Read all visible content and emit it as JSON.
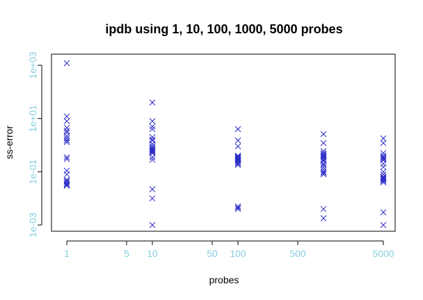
{
  "chart_data": {
    "type": "scatter",
    "title": "ipdb using 1, 10, 100, 1000, 5000 probes",
    "xlabel": "probes",
    "ylabel": "ss-error",
    "x_scale": "log",
    "y_scale": "log",
    "xlim": [
      0.8,
      6500
    ],
    "ylim": [
      0.0005,
      1500
    ],
    "x_ticks": [
      1,
      5,
      10,
      50,
      100,
      500,
      5000
    ],
    "x_tick_labels": [
      "1",
      "5",
      "10",
      "50",
      "100",
      "500",
      "5000"
    ],
    "y_ticks": [
      0.001,
      0.1,
      10,
      1000
    ],
    "y_tick_labels": [
      "1e-03",
      "1e-01",
      "1e+01",
      "1e+03"
    ],
    "marker": "x",
    "colors": {
      "points": "#2b2bc8",
      "ticks": "#87cee0",
      "frame": "#000000"
    },
    "series": [
      {
        "x": [
          1,
          1,
          1,
          1,
          1,
          1,
          1,
          1,
          1,
          1,
          1,
          1,
          1,
          1,
          1,
          1,
          1,
          1,
          1,
          1,
          10,
          10,
          10,
          10,
          10,
          10,
          10,
          10,
          10,
          10,
          10,
          10,
          10,
          10,
          10,
          10,
          10,
          10,
          10,
          10,
          100,
          100,
          100,
          100,
          100,
          100,
          100,
          100,
          100,
          100,
          100,
          100,
          100,
          100,
          100,
          100,
          100,
          100,
          100,
          100,
          1000,
          1000,
          1000,
          1000,
          1000,
          1000,
          1000,
          1000,
          1000,
          1000,
          1000,
          1000,
          1000,
          1000,
          1000,
          1000,
          1000,
          1000,
          1000,
          1000,
          5000,
          5000,
          5000,
          5000,
          5000,
          5000,
          5000,
          5000,
          5000,
          5000,
          5000,
          5000,
          5000,
          5000,
          5000,
          5000,
          5000,
          5000,
          5000,
          5000
        ],
        "y": [
          1200,
          12,
          8,
          4.5,
          3.5,
          3,
          2.2,
          1.8,
          1.5,
          1.3,
          0.35,
          0.3,
          0.11,
          0.08,
          0.05,
          0.045,
          0.04,
          0.035,
          0.032,
          0.03,
          40,
          8,
          5,
          4,
          2,
          1.6,
          1.5,
          0.8,
          0.7,
          0.6,
          0.5,
          0.35,
          0.28,
          0.022,
          0.01,
          0.001,
          0.9,
          1.1,
          0.65,
          0.55,
          4,
          4,
          1.5,
          0.9,
          0.4,
          0.35,
          0.3,
          0.28,
          0.25,
          0.2,
          0.18,
          0.004,
          0.005,
          0.0045,
          0.38,
          0.32,
          0.22,
          0.27,
          0.31,
          0.36,
          2.6,
          1.2,
          0.6,
          0.4,
          0.35,
          0.3,
          0.2,
          0.18,
          0.15,
          0.1,
          0.09,
          0.08,
          0.004,
          0.0018,
          0.45,
          0.25,
          0.12,
          0.28,
          0.38,
          0.5,
          1.8,
          1.2,
          0.5,
          0.4,
          0.35,
          0.3,
          0.2,
          0.15,
          0.1,
          0.08,
          0.06,
          0.05,
          0.045,
          0.04,
          0.003,
          0.001,
          0.33,
          0.27,
          0.065,
          0.055
        ]
      }
    ],
    "grid": false
  }
}
